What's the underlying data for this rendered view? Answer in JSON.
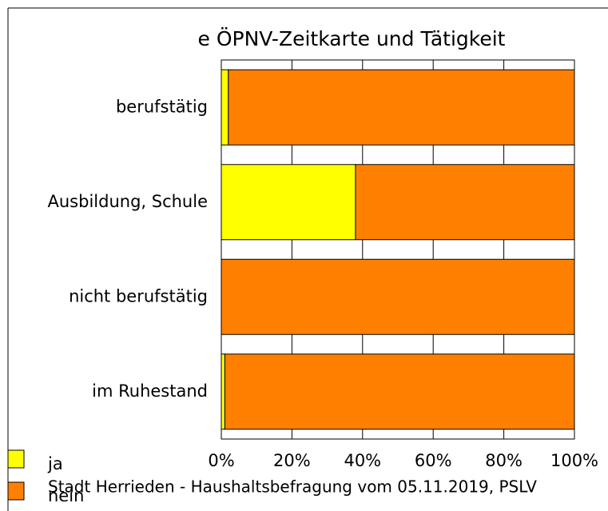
{
  "chart_data": {
    "type": "stacked-bar-horizontal",
    "title": "e   ÖPNV-Zeitkarte und Tätigkeit",
    "note": "Stadt Herrieden - Haushaltsbefragung vom 05.11.2019, PSLV",
    "categories": [
      "berufstätig",
      "Ausbildung, Schule",
      "nicht berufstätig",
      "im Ruhestand"
    ],
    "series": [
      {
        "name": "ja",
        "color": "#ffff00",
        "values": [
          2,
          38,
          0,
          1
        ]
      },
      {
        "name": "nein",
        "color": "#ff8000",
        "values": [
          98,
          62,
          100,
          99
        ]
      }
    ],
    "xlim": [
      0,
      100
    ],
    "xticks": [
      {
        "value": 0,
        "label": "0%"
      },
      {
        "value": 20,
        "label": "20%"
      },
      {
        "value": 40,
        "label": "40%"
      },
      {
        "value": 60,
        "label": "60%"
      },
      {
        "value": 80,
        "label": "80%"
      },
      {
        "value": 100,
        "label": "100%"
      }
    ],
    "grid": true,
    "legend": "bottom-left"
  }
}
